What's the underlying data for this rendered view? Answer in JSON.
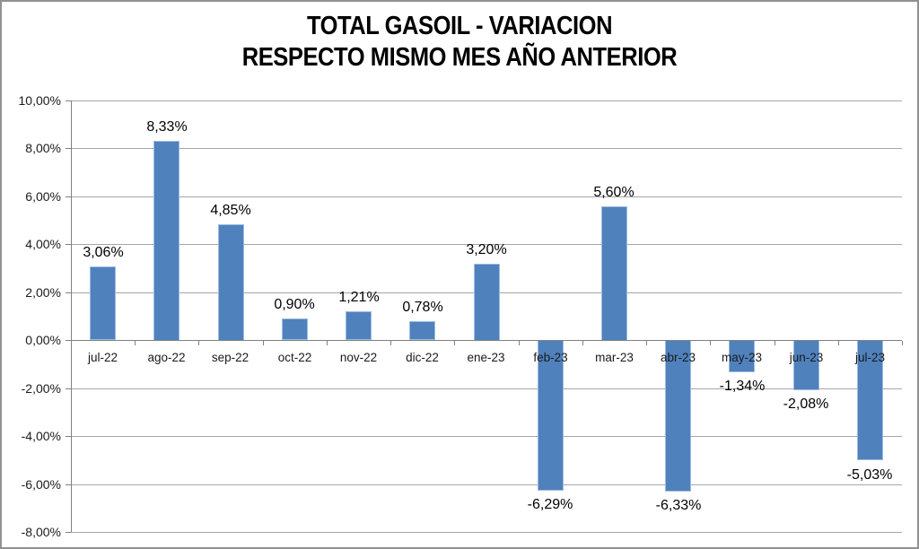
{
  "chart_data": {
    "type": "bar",
    "title": "TOTAL GASOIL - VARIACION RESPECTO MISMO MES AÑO ANTERIOR",
    "title_lines": [
      "TOTAL GASOIL - VARIACION",
      "RESPECTO MISMO MES AÑO ANTERIOR"
    ],
    "categories": [
      "jul-22",
      "ago-22",
      "sep-22",
      "oct-22",
      "nov-22",
      "dic-22",
      "ene-23",
      "feb-23",
      "mar-23",
      "abr-23",
      "may-23",
      "jun-23",
      "jul-23"
    ],
    "values": [
      3.06,
      8.33,
      4.85,
      0.9,
      1.21,
      0.78,
      3.2,
      -6.29,
      5.6,
      -6.33,
      -1.34,
      -2.08,
      -5.03
    ],
    "data_labels": [
      "3,06%",
      "8,33%",
      "4,85%",
      "0,90%",
      "1,21%",
      "0,78%",
      "3,20%",
      "-6,29%",
      "5,60%",
      "-6,33%",
      "-1,34%",
      "-2,08%",
      "-5,03%"
    ],
    "xlabel": "",
    "ylabel": "",
    "ylim": [
      -8,
      10
    ],
    "grid": true,
    "legend": "none",
    "y_axis": {
      "ticks": [
        10,
        8,
        6,
        4,
        2,
        0,
        -2,
        -4,
        -6,
        -8
      ],
      "labels": [
        "10,00%",
        "8,00%",
        "6,00%",
        "4,00%",
        "2,00%",
        "0,00%",
        "-2,00%",
        "-4,00%",
        "-6,00%",
        "-8,00%"
      ]
    },
    "colors": {
      "bar_fill": "#4f81bd",
      "bar_border": "#9fbbdf",
      "gridline": "#a6a6a6",
      "axis": "#808080",
      "text": "#000000",
      "chart_border": "#919191",
      "background": "#ffffff"
    }
  }
}
